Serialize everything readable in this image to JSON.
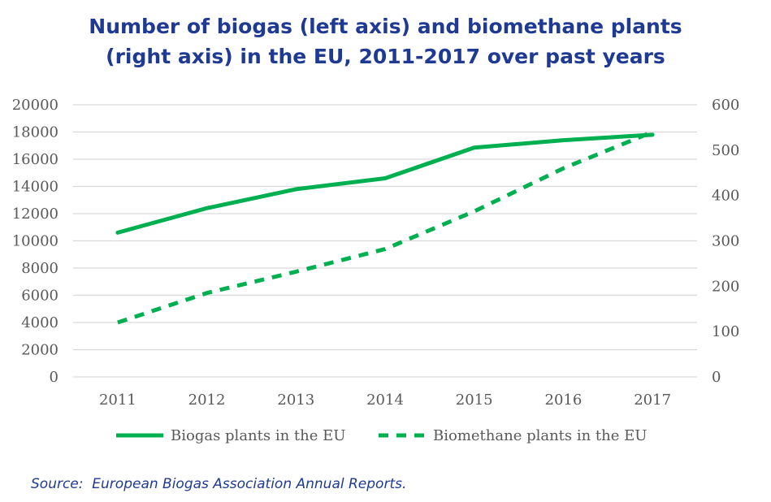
{
  "chart_data": {
    "type": "line",
    "title_line1": "Number of biogas (left axis) and biomethane plants",
    "title_line2": "(right axis) in the EU, 2011-2017 over past years",
    "categories": [
      "2011",
      "2012",
      "2013",
      "2014",
      "2015",
      "2016",
      "2017"
    ],
    "y_left": {
      "min": 0,
      "max": 20000,
      "ticks": [
        "0",
        "2000",
        "4000",
        "6000",
        "8000",
        "10000",
        "12000",
        "14000",
        "16000",
        "18000",
        "20000"
      ]
    },
    "y_right": {
      "min": 0,
      "max": 600,
      "ticks": [
        "0",
        "100",
        "200",
        "300",
        "400",
        "500",
        "600"
      ]
    },
    "series": [
      {
        "name": "Biogas plants in the EU",
        "axis": "left",
        "style": "solid",
        "color": "#00b050",
        "values": [
          10600,
          12400,
          13800,
          14600,
          16850,
          17400,
          17800
        ]
      },
      {
        "name": "Biomethane plants in the EU",
        "axis": "right",
        "style": "dashed",
        "color": "#00b050",
        "values": [
          120,
          185,
          232,
          282,
          365,
          460,
          540
        ]
      }
    ],
    "grid": true,
    "legend_position": "bottom"
  },
  "source": "Source:  European Biogas Association Annual Reports."
}
